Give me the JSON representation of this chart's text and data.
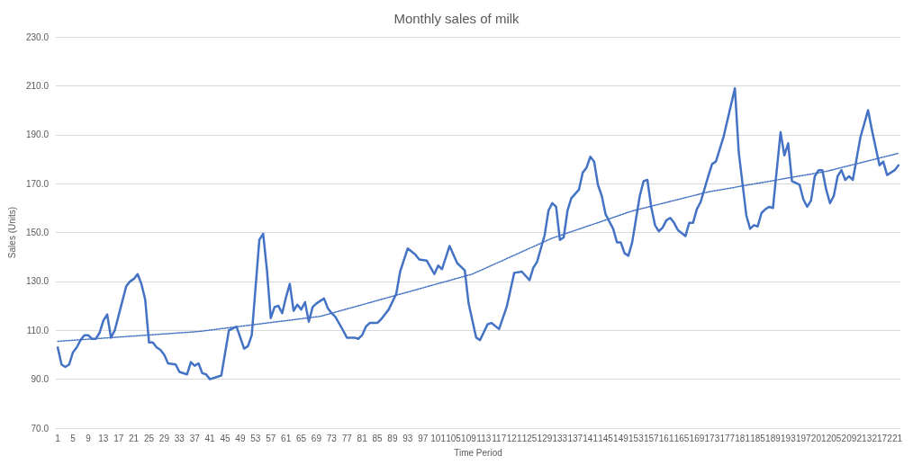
{
  "chart_data": {
    "type": "line",
    "title": "Monthly sales of milk",
    "xlabel": "Time Period",
    "ylabel": "Sales (Units)",
    "grid": "y",
    "marker": "none",
    "line_style": "solid",
    "xlim": [
      0.5,
      222.5
    ],
    "xticks": [
      1,
      5,
      9,
      13,
      17,
      21,
      25,
      29,
      33,
      37,
      41,
      45,
      49,
      53,
      57,
      61,
      65,
      69,
      73,
      77,
      81,
      85,
      89,
      93,
      97,
      101,
      105,
      109,
      113,
      117,
      121,
      125,
      129,
      133,
      137,
      141,
      145,
      149,
      153,
      157,
      161,
      165,
      169,
      173,
      177,
      181,
      185,
      189,
      193,
      197,
      201,
      205,
      209,
      213,
      217,
      221
    ],
    "ylim": [
      70,
      230
    ],
    "yticks": [
      {
        "value": 70,
        "label": "70.0"
      },
      {
        "value": 90,
        "label": "90.0"
      },
      {
        "value": 110,
        "label": "110.0"
      },
      {
        "value": 130,
        "label": "130.0"
      },
      {
        "value": 150,
        "label": "150.0"
      },
      {
        "value": 170,
        "label": "170.0"
      },
      {
        "value": 190,
        "label": "190.0"
      },
      {
        "value": 210,
        "label": "210.0"
      },
      {
        "value": 230,
        "label": "230.0"
      }
    ],
    "series": [
      {
        "color": "#4472c4",
        "x": [
          1,
          2,
          3,
          4,
          5,
          6,
          7,
          8,
          9,
          10,
          11,
          12,
          13,
          14,
          15,
          16,
          17,
          19,
          20,
          21,
          22,
          23,
          24,
          25,
          26,
          27,
          28,
          29,
          30,
          32,
          33,
          35,
          36,
          37,
          38,
          39,
          40,
          41,
          42,
          44,
          46,
          48,
          50,
          51,
          52,
          54,
          55,
          56,
          57,
          58,
          59,
          60,
          61,
          62,
          63,
          64,
          65,
          66,
          67,
          68,
          69,
          71,
          72,
          73,
          74,
          76,
          77,
          79,
          80,
          81,
          82,
          83,
          85,
          86,
          88,
          90,
          91,
          93,
          95,
          96,
          98,
          100,
          101,
          102,
          104,
          106,
          108,
          109,
          111,
          112,
          114,
          115,
          117,
          119,
          121,
          123,
          125,
          126,
          127,
          129,
          130,
          131,
          132,
          133,
          134,
          135,
          136,
          138,
          139,
          140,
          141,
          142,
          143,
          144,
          145,
          147,
          148,
          149,
          150,
          151,
          152,
          154,
          155,
          156,
          157,
          158,
          159,
          160,
          161,
          162,
          163,
          164,
          166,
          167,
          168,
          169,
          170,
          172,
          173,
          174,
          176,
          179,
          180,
          182,
          183,
          184,
          185,
          186,
          187,
          188,
          189,
          191,
          192,
          193,
          194,
          196,
          197,
          198,
          199,
          200,
          201,
          202,
          203,
          204,
          205,
          206,
          207,
          208,
          209,
          210,
          212,
          214,
          215,
          217,
          218,
          219,
          221,
          222
        ],
        "values": [
          103,
          96,
          95,
          96,
          101,
          103,
          106,
          108,
          108,
          106.5,
          106.5,
          109,
          114,
          116.5,
          107,
          110,
          116,
          128,
          130,
          131,
          133,
          129,
          122.5,
          105,
          105,
          103,
          102,
          100,
          96.5,
          96,
          93,
          92,
          97,
          95.5,
          96.5,
          92.5,
          92,
          90,
          90.5,
          91.5,
          110,
          111.5,
          102.5,
          103.5,
          108,
          147,
          149.5,
          134.5,
          115,
          119.5,
          120,
          117,
          123.5,
          129,
          118,
          120.5,
          118.5,
          121.5,
          113.5,
          119.5,
          121,
          123,
          119,
          117,
          115.5,
          110,
          107,
          107,
          106.5,
          108,
          111.5,
          113,
          113,
          114.5,
          118.5,
          125,
          134,
          143.5,
          141,
          139,
          138.5,
          133,
          136.5,
          135,
          144.5,
          137.5,
          134.5,
          121,
          107,
          106,
          112.5,
          113,
          110.5,
          119.5,
          133.5,
          134,
          130.5,
          135.5,
          138,
          149,
          159,
          162,
          160.5,
          147,
          148,
          159,
          164,
          167.5,
          174.5,
          176.5,
          181,
          179,
          169.5,
          165,
          157.5,
          151.5,
          146,
          146,
          141.5,
          140.5,
          146,
          165,
          171,
          171.5,
          160.5,
          153,
          150.5,
          152,
          155,
          156,
          154,
          151,
          148.5,
          154,
          154,
          159.5,
          162.5,
          173,
          178,
          179,
          189,
          209,
          183,
          157,
          151.5,
          153,
          152.5,
          158,
          159.5,
          160.5,
          160,
          191,
          181.5,
          186.5,
          171,
          169.5,
          163.5,
          160.5,
          163,
          173,
          175.5,
          175.5,
          167.5,
          162,
          165,
          173,
          175.5,
          171.5,
          173,
          171.5,
          189,
          200,
          192,
          177.5,
          179,
          173.5,
          175.5,
          177.5
        ]
      },
      {
        "type": "line",
        "line_style": "dotted",
        "color": "#4472c4",
        "x": [
          1,
          38,
          70,
          110,
          131,
          152,
          172,
          186,
          203,
          222
        ],
        "values": [
          105.5,
          109.5,
          115.7,
          133,
          147.7,
          158.8,
          166.6,
          170.4,
          175,
          182.4
        ]
      }
    ]
  }
}
